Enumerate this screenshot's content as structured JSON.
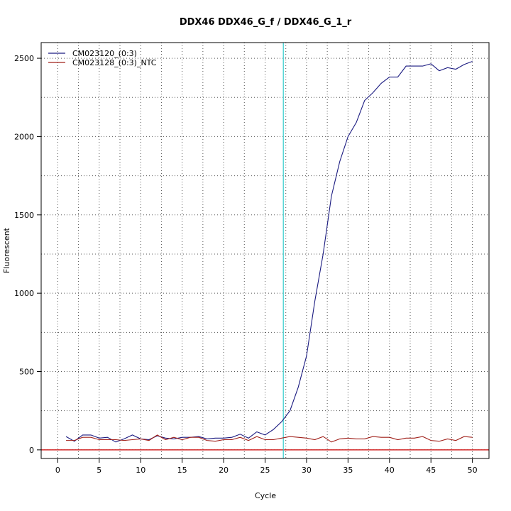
{
  "chart_data": {
    "type": "line",
    "title": "DDX46  DDX46_G_f / DDX46_G_1_r",
    "xlabel": "Cycle",
    "ylabel": "Fluorescent",
    "xlim": [
      -2,
      52
    ],
    "ylim": [
      -55,
      2600
    ],
    "xticks": [
      0,
      5,
      10,
      15,
      20,
      25,
      30,
      35,
      40,
      45,
      50
    ],
    "yticks": [
      0,
      500,
      1000,
      1500,
      2000,
      2500
    ],
    "grid": true,
    "legend_position": "top-left",
    "threshold_cycle": 27.2,
    "baseline": 0,
    "x": [
      1,
      2,
      3,
      4,
      5,
      6,
      7,
      8,
      9,
      10,
      11,
      12,
      13,
      14,
      15,
      16,
      17,
      18,
      19,
      20,
      21,
      22,
      23,
      24,
      25,
      26,
      27,
      28,
      29,
      30,
      31,
      32,
      33,
      34,
      35,
      36,
      37,
      38,
      39,
      40,
      41,
      42,
      43,
      44,
      45,
      46,
      47,
      48,
      49,
      50
    ],
    "series": [
      {
        "name": "CM023120_(0:3)",
        "color": "#1a1a80",
        "values": [
          85,
          55,
          95,
          95,
          75,
          80,
          50,
          70,
          95,
          70,
          65,
          90,
          75,
          70,
          80,
          80,
          85,
          70,
          75,
          75,
          80,
          100,
          75,
          115,
          95,
          130,
          180,
          250,
          400,
          600,
          950,
          1250,
          1620,
          1840,
          2000,
          2090,
          2230,
          2280,
          2340,
          2380,
          2380,
          2450,
          2450,
          2450,
          2465,
          2420,
          2440,
          2430,
          2460,
          2480
        ]
      },
      {
        "name": "CM023128_(0:3)_NTC",
        "color": "#a0201a",
        "values": [
          60,
          60,
          80,
          80,
          65,
          65,
          65,
          60,
          65,
          70,
          60,
          95,
          65,
          80,
          65,
          80,
          80,
          60,
          55,
          65,
          65,
          80,
          60,
          85,
          65,
          65,
          75,
          85,
          80,
          75,
          65,
          85,
          50,
          70,
          75,
          70,
          70,
          85,
          80,
          80,
          65,
          75,
          75,
          85,
          60,
          55,
          70,
          60,
          85,
          80
        ]
      }
    ],
    "threshold_color": "#33cccc",
    "baseline_color": "#cc0000"
  }
}
